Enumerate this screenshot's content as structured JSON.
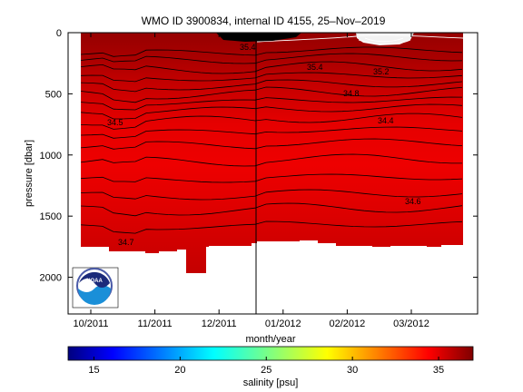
{
  "chart_data": {
    "type": "heatmap",
    "title": "WMO ID 3900834, internal ID 4155, 25–Nov–2019",
    "xlabel": "month/year",
    "ylabel": "pressure [dbar]",
    "x_ticks": [
      "10/2011",
      "11/2011",
      "12/2011",
      "01/2012",
      "02/2012",
      "03/2012"
    ],
    "y_ticks": [
      0,
      500,
      1000,
      1500,
      2000
    ],
    "ylim": [
      2300,
      0
    ],
    "colorbar": {
      "label": "salinity [psu]",
      "ticks": [
        15,
        20,
        25,
        30,
        35
      ],
      "range": [
        13.5,
        37
      ],
      "colormap": "jet"
    },
    "contour_labels": [
      "35.4",
      "35.4",
      "35.2",
      "34.8",
      "34.5",
      "34.4",
      "34.6",
      "34.7"
    ],
    "logo": {
      "text": "NOAA"
    },
    "colors": {
      "high_salinity": "#7f0000",
      "mid_salinity": "#e80000",
      "low_salinity": "#00007f"
    }
  }
}
